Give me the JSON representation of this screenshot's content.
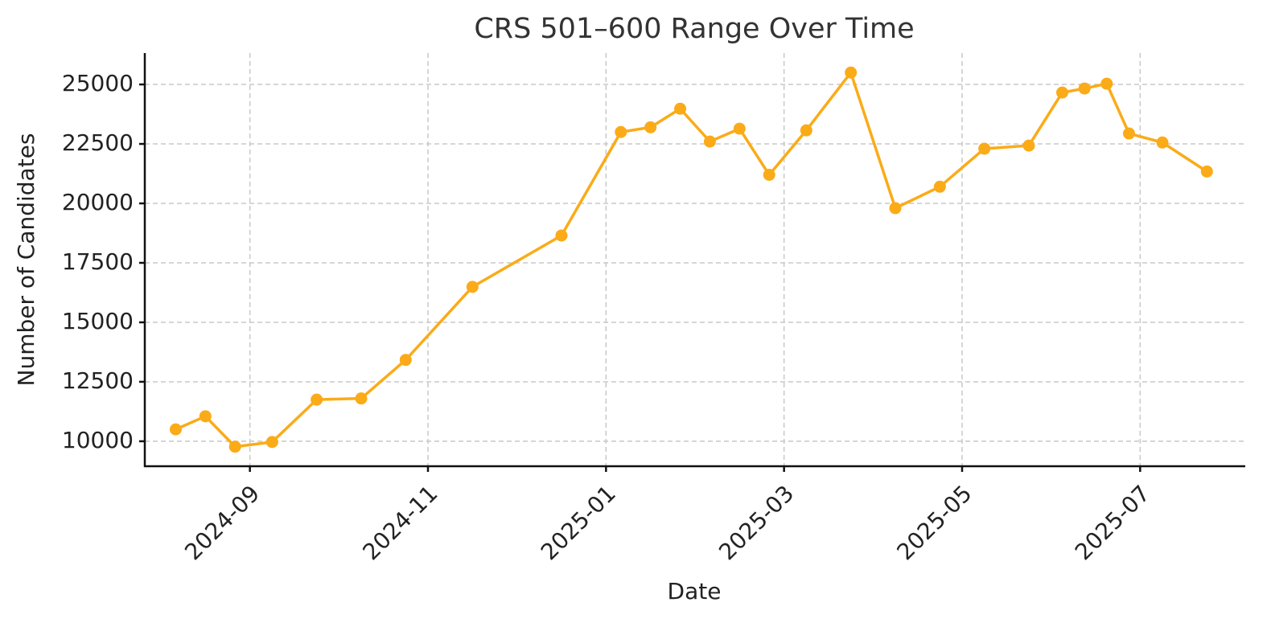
{
  "chart_data": {
    "type": "line",
    "title": "CRS 501–600 Range Over Time",
    "x_label": "Date",
    "y_label": "Number of Candidates",
    "x": [
      "2024-08",
      "2024-08",
      "2024-08",
      "2024-09",
      "2024-09",
      "2024-10",
      "2024-10",
      "2024-11",
      "2024-12",
      "2025-01",
      "2025-01",
      "2025-01",
      "2025-02",
      "2025-02",
      "2025-02",
      "2025-03",
      "2025-03",
      "2025-04",
      "2025-04",
      "2025-05",
      "2025-05",
      "2025-06",
      "2025-06",
      "2025-06",
      "2025-06",
      "2025-07",
      "2025-07"
    ],
    "values": [
      10500,
      11050,
      9770,
      9970,
      11750,
      11800,
      13420,
      16490,
      18650,
      23000,
      23200,
      23980,
      22600,
      23140,
      21200,
      23070,
      25500,
      19800,
      20700,
      22300,
      22430,
      24660,
      24830,
      25030,
      22940,
      22560,
      21340
    ],
    "color": "#fbab18",
    "xlim": [
      "2024-08",
      "2025-07"
    ],
    "xticks": [
      "2024-09",
      "2024-11",
      "2025-01",
      "2025-03",
      "2025-05",
      "2025-07"
    ],
    "ylim": [
      8950,
      26320
    ],
    "yticks": [
      10000,
      12500,
      15000,
      17500,
      20000,
      22500,
      25000
    ],
    "grid": true
  }
}
